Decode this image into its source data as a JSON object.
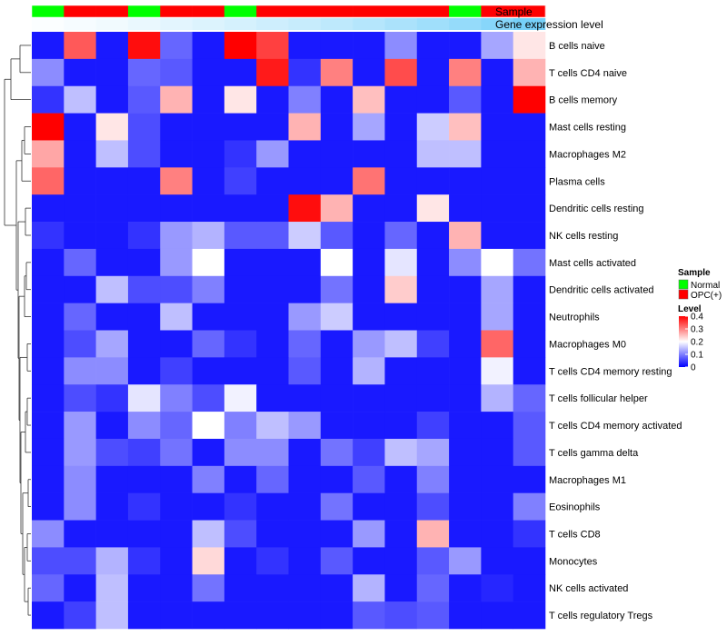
{
  "chart_data": {
    "type": "heatmap",
    "row_labels": [
      "B cells naive",
      "T cells CD4 naive",
      "B cells memory",
      "Mast cells resting",
      "Macrophages M2",
      "Plasma cells",
      "Dendritic cells resting",
      "NK cells resting",
      "Mast cells activated",
      "Dendritic cells activated",
      "Neutrophils",
      "Macrophages M0",
      "T cells CD4 memory resting",
      "T cells follicular helper",
      "T cells CD4 memory activated",
      "T cells gamma delta",
      "Macrophages M1",
      "Eosinophils",
      "T cells CD8",
      "Monocytes",
      "NK cells activated",
      "T cells regulatory  Tregs"
    ],
    "sample_groups": [
      "Normal",
      "OPC(+)",
      "OPC(+)",
      "Normal",
      "OPC(+)",
      "OPC(+)",
      "Normal",
      "OPC(+)",
      "OPC(+)",
      "OPC(+)",
      "OPC(+)",
      "OPC(+)",
      "OPC(+)",
      "Normal",
      "OPC(+)",
      "OPC(+)"
    ],
    "gene_expression_level": [
      0.02,
      0.05,
      0.08,
      0.12,
      0.16,
      0.2,
      0.24,
      0.28,
      0.32,
      0.37,
      0.42,
      0.48,
      0.54,
      0.6,
      0.68,
      0.78
    ],
    "values": [
      [
        0.02,
        0.33,
        0.02,
        0.39,
        0.08,
        0.02,
        0.4,
        0.35,
        0.02,
        0.02,
        0.02,
        0.11,
        0.02,
        0.02,
        0.13,
        0.22
      ],
      [
        0.11,
        0.02,
        0.02,
        0.08,
        0.07,
        0.02,
        0.02,
        0.38,
        0.04,
        0.3,
        0.02,
        0.34,
        0.02,
        0.3,
        0.02,
        0.26
      ],
      [
        0.04,
        0.15,
        0.02,
        0.07,
        0.26,
        0.02,
        0.22,
        0.02,
        0.1,
        0.02,
        0.25,
        0.02,
        0.02,
        0.07,
        0.02,
        0.4
      ],
      [
        0.4,
        0.02,
        0.22,
        0.06,
        0.02,
        0.02,
        0.02,
        0.02,
        0.26,
        0.02,
        0.13,
        0.02,
        0.16,
        0.25,
        0.02,
        0.02
      ],
      [
        0.27,
        0.02,
        0.15,
        0.06,
        0.02,
        0.02,
        0.04,
        0.12,
        0.02,
        0.02,
        0.02,
        0.02,
        0.15,
        0.15,
        0.02,
        0.02
      ],
      [
        0.32,
        0.02,
        0.02,
        0.02,
        0.3,
        0.02,
        0.05,
        0.02,
        0.02,
        0.02,
        0.31,
        0.02,
        0.02,
        0.02,
        0.02,
        0.02
      ],
      [
        0.02,
        0.02,
        0.02,
        0.02,
        0.02,
        0.02,
        0.02,
        0.02,
        0.39,
        0.26,
        0.02,
        0.02,
        0.22,
        0.02,
        0.02,
        0.02
      ],
      [
        0.04,
        0.02,
        0.02,
        0.04,
        0.12,
        0.14,
        0.07,
        0.07,
        0.16,
        0.07,
        0.02,
        0.08,
        0.02,
        0.26,
        0.02,
        0.02
      ],
      [
        0.02,
        0.08,
        0.02,
        0.02,
        0.12,
        0.2,
        0.02,
        0.02,
        0.02,
        0.2,
        0.02,
        0.18,
        0.02,
        0.11,
        0.2,
        0.09
      ],
      [
        0.02,
        0.02,
        0.15,
        0.06,
        0.06,
        0.1,
        0.02,
        0.02,
        0.02,
        0.09,
        0.02,
        0.24,
        0.02,
        0.02,
        0.13,
        0.02
      ],
      [
        0.02,
        0.08,
        0.02,
        0.02,
        0.15,
        0.02,
        0.02,
        0.02,
        0.12,
        0.16,
        0.02,
        0.02,
        0.02,
        0.02,
        0.13,
        0.02
      ],
      [
        0.02,
        0.06,
        0.13,
        0.02,
        0.02,
        0.08,
        0.04,
        0.02,
        0.08,
        0.02,
        0.12,
        0.15,
        0.05,
        0.02,
        0.32,
        0.02
      ],
      [
        0.02,
        0.11,
        0.11,
        0.02,
        0.05,
        0.02,
        0.02,
        0.02,
        0.07,
        0.02,
        0.14,
        0.02,
        0.02,
        0.02,
        0.19,
        0.02
      ],
      [
        0.02,
        0.06,
        0.04,
        0.18,
        0.1,
        0.06,
        0.19,
        0.02,
        0.02,
        0.02,
        0.02,
        0.02,
        0.02,
        0.02,
        0.14,
        0.08
      ],
      [
        0.02,
        0.12,
        0.02,
        0.11,
        0.08,
        0.2,
        0.1,
        0.15,
        0.12,
        0.02,
        0.02,
        0.02,
        0.05,
        0.02,
        0.02,
        0.07
      ],
      [
        0.02,
        0.12,
        0.06,
        0.05,
        0.09,
        0.02,
        0.11,
        0.11,
        0.02,
        0.09,
        0.05,
        0.15,
        0.13,
        0.02,
        0.02,
        0.07
      ],
      [
        0.02,
        0.11,
        0.02,
        0.02,
        0.02,
        0.1,
        0.02,
        0.08,
        0.02,
        0.02,
        0.07,
        0.02,
        0.1,
        0.02,
        0.02,
        0.02
      ],
      [
        0.02,
        0.11,
        0.02,
        0.04,
        0.02,
        0.02,
        0.04,
        0.02,
        0.02,
        0.09,
        0.02,
        0.02,
        0.06,
        0.02,
        0.02,
        0.1
      ],
      [
        0.11,
        0.02,
        0.02,
        0.02,
        0.02,
        0.15,
        0.06,
        0.02,
        0.02,
        0.02,
        0.12,
        0.02,
        0.26,
        0.02,
        0.02,
        0.04
      ],
      [
        0.06,
        0.06,
        0.14,
        0.04,
        0.02,
        0.23,
        0.02,
        0.04,
        0.02,
        0.07,
        0.02,
        0.02,
        0.07,
        0.12,
        0.02,
        0.02
      ],
      [
        0.08,
        0.02,
        0.15,
        0.02,
        0.02,
        0.09,
        0.02,
        0.02,
        0.02,
        0.02,
        0.14,
        0.02,
        0.08,
        0.02,
        0.03,
        0.02
      ],
      [
        0.02,
        0.05,
        0.15,
        0.02,
        0.02,
        0.02,
        0.02,
        0.02,
        0.02,
        0.02,
        0.07,
        0.06,
        0.07,
        0.02,
        0.02,
        0.02
      ]
    ],
    "color_scale": {
      "low": "#0000FF",
      "mid": "#FFFFFF",
      "high": "#FF0000",
      "min": 0,
      "mid_value": 0.2,
      "max": 0.4
    },
    "annotation_colors": {
      "Normal": "#00FF00",
      "OPC(+)": "#FF0000",
      "expr_low": "#FFFFFF",
      "expr_high": "#4FC3F7"
    },
    "annotation_labels": {
      "sample": "Sample",
      "expression": "Gene expression level"
    },
    "legend": {
      "sample_title": "Sample",
      "sample_items": [
        {
          "label": "Normal",
          "color": "#00FF00"
        },
        {
          "label": "OPC(+)",
          "color": "#FF0000"
        }
      ],
      "level_title": "Level",
      "level_ticks": [
        {
          "value": 0.4,
          "label": "0.4"
        },
        {
          "value": 0.3,
          "label": "0.3"
        },
        {
          "value": 0.2,
          "label": "0.2"
        },
        {
          "value": 0.1,
          "label": "0.1"
        },
        {
          "value": 0,
          "label": "0"
        }
      ]
    }
  }
}
